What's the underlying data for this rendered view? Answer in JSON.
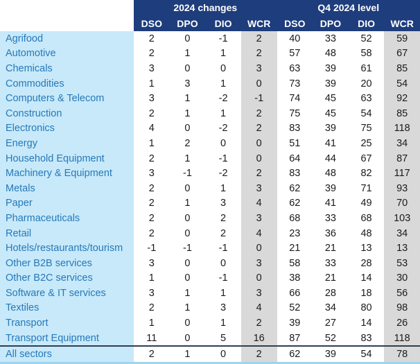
{
  "chart_data": {
    "type": "table",
    "column_groups": [
      {
        "label": "2024 changes",
        "columns": [
          "DSO",
          "DPO",
          "DIO",
          "WCR"
        ]
      },
      {
        "label": "Q4 2024 level",
        "columns": [
          "DSO",
          "DPO",
          "DIO",
          "WCR"
        ]
      }
    ],
    "rows": [
      {
        "sector": "Agrifood",
        "values": [
          2,
          0,
          -1,
          2,
          40,
          33,
          52,
          59
        ]
      },
      {
        "sector": "Automotive",
        "values": [
          2,
          1,
          1,
          2,
          57,
          48,
          58,
          67
        ]
      },
      {
        "sector": "Chemicals",
        "values": [
          3,
          0,
          0,
          3,
          63,
          39,
          61,
          85
        ]
      },
      {
        "sector": "Commodities",
        "values": [
          1,
          3,
          1,
          0,
          73,
          39,
          20,
          54
        ]
      },
      {
        "sector": "Computers & Telecom",
        "values": [
          3,
          1,
          -2,
          -1,
          74,
          45,
          63,
          92
        ]
      },
      {
        "sector": "Construction",
        "values": [
          2,
          1,
          1,
          2,
          75,
          45,
          54,
          85
        ]
      },
      {
        "sector": "Electronics",
        "values": [
          4,
          0,
          -2,
          2,
          83,
          39,
          75,
          118
        ]
      },
      {
        "sector": "Energy",
        "values": [
          1,
          2,
          0,
          0,
          51,
          41,
          25,
          34
        ]
      },
      {
        "sector": "Household Equipment",
        "values": [
          2,
          1,
          -1,
          0,
          64,
          44,
          67,
          87
        ]
      },
      {
        "sector": "Machinery & Equipment",
        "values": [
          3,
          -1,
          -2,
          2,
          83,
          48,
          82,
          117
        ]
      },
      {
        "sector": "Metals",
        "values": [
          2,
          0,
          1,
          3,
          62,
          39,
          71,
          93
        ]
      },
      {
        "sector": "Paper",
        "values": [
          2,
          1,
          3,
          4,
          62,
          41,
          49,
          70
        ]
      },
      {
        "sector": "Pharmaceuticals",
        "values": [
          2,
          0,
          2,
          3,
          68,
          33,
          68,
          103
        ]
      },
      {
        "sector": "Retail",
        "values": [
          2,
          0,
          2,
          4,
          23,
          36,
          48,
          34
        ]
      },
      {
        "sector": "Hotels/restaurants/tourism",
        "values": [
          -1,
          -1,
          -1,
          0,
          21,
          21,
          13,
          13
        ]
      },
      {
        "sector": "Other B2B services",
        "values": [
          3,
          0,
          0,
          3,
          58,
          33,
          28,
          53
        ]
      },
      {
        "sector": "Other B2C services",
        "values": [
          1,
          0,
          -1,
          0,
          38,
          21,
          14,
          30
        ]
      },
      {
        "sector": "Software & IT services",
        "values": [
          3,
          1,
          1,
          3,
          66,
          28,
          18,
          56
        ]
      },
      {
        "sector": "Textiles",
        "values": [
          2,
          1,
          3,
          4,
          52,
          34,
          80,
          98
        ]
      },
      {
        "sector": "Transport",
        "values": [
          1,
          0,
          1,
          2,
          39,
          27,
          14,
          26
        ]
      },
      {
        "sector": "Transport Equipment",
        "values": [
          11,
          0,
          5,
          16,
          87,
          52,
          83,
          118
        ]
      }
    ],
    "total_row": {
      "sector": "All sectors",
      "values": [
        2,
        1,
        0,
        2,
        62,
        39,
        54,
        78
      ]
    }
  },
  "colors": {
    "header_bg": "#1e3d7c",
    "header_text": "#ffffff",
    "sector_bg": "#c7e9fa",
    "sector_text": "#2779b8",
    "wcr_band_bg": "#d9d9d9",
    "value_text": "#1a1a1a",
    "divider": "#2f3d52",
    "bottom_border": "#9fd4ef"
  }
}
